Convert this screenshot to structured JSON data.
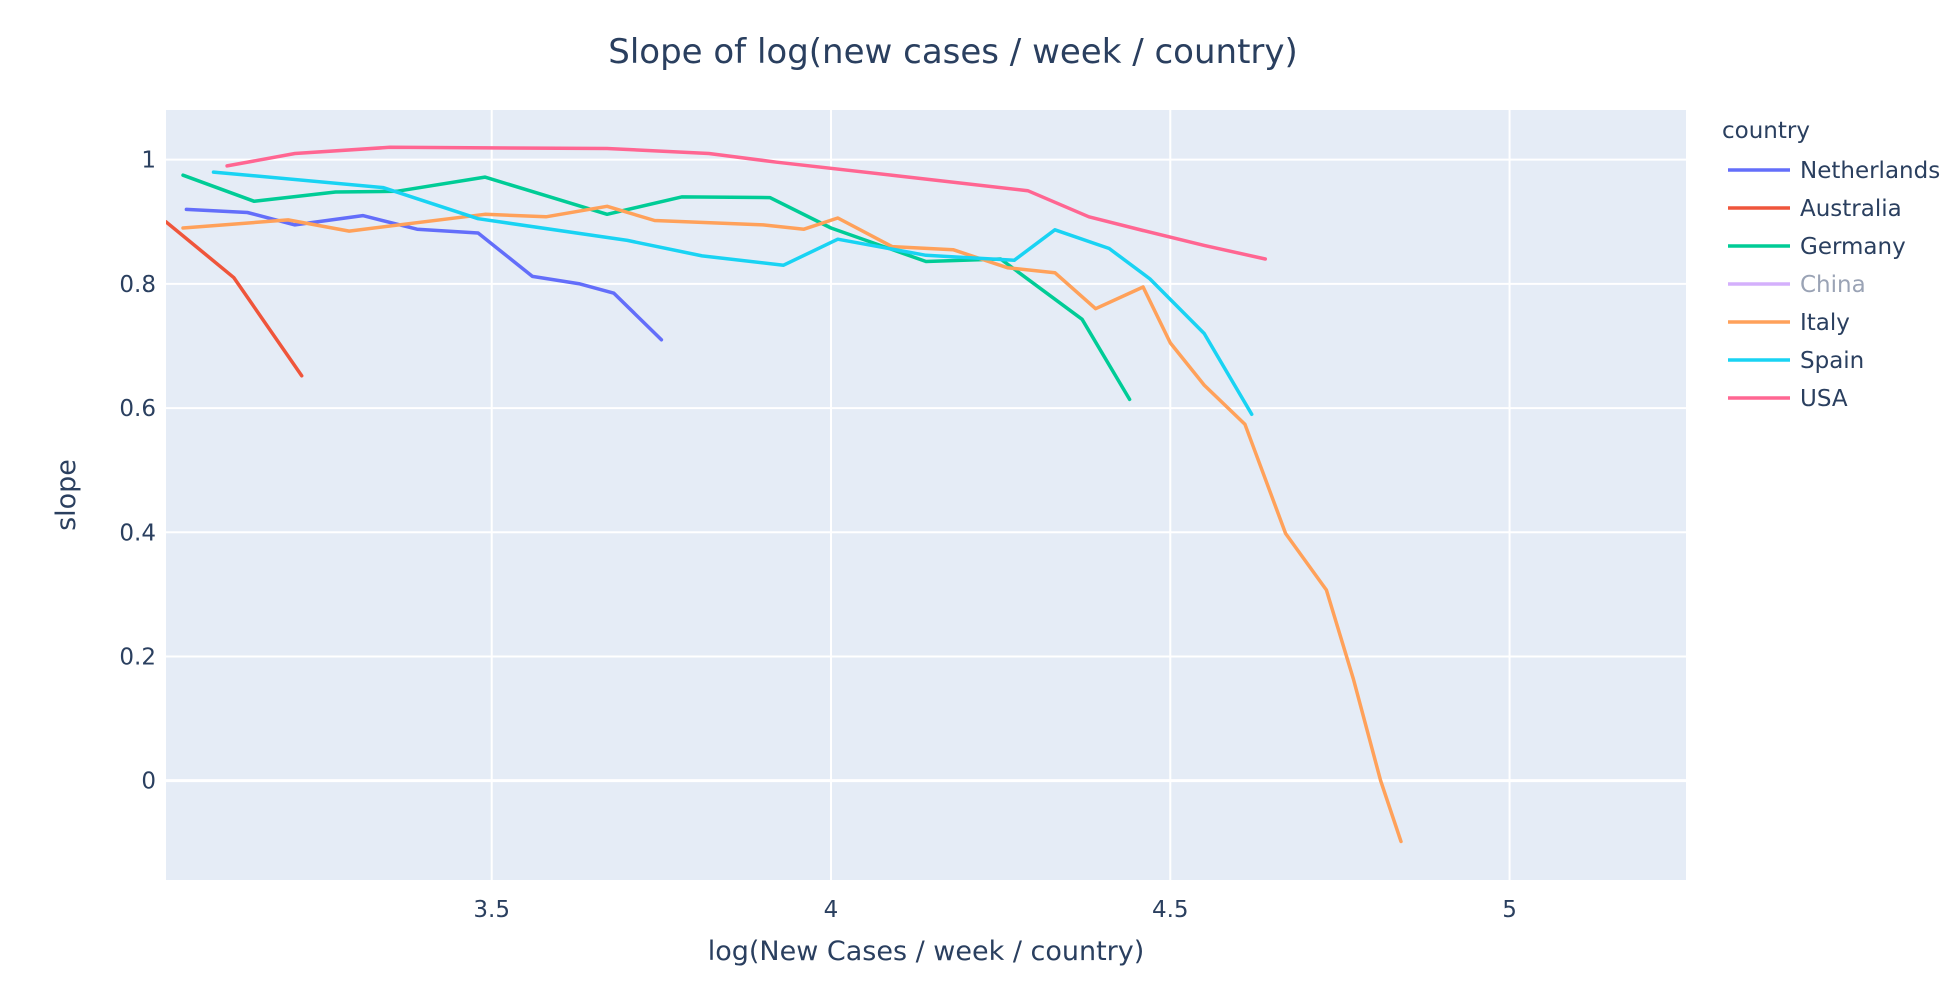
{
  "chart_data": {
    "type": "line",
    "title": "Slope of log(new cases / week / country)",
    "xlabel": "log(New Cases / week / country)",
    "ylabel": "slope",
    "xlim": [
      3.02,
      5.26
    ],
    "ylim": [
      -0.16,
      1.08
    ],
    "x_ticks": [
      3.5,
      4,
      4.5,
      5
    ],
    "x_tick_labels": [
      "3.5",
      "4",
      "4.5",
      "5"
    ],
    "y_ticks": [
      0,
      0.2,
      0.4,
      0.6,
      0.8,
      1
    ],
    "y_tick_labels": [
      "0",
      "0.2",
      "0.4",
      "0.6",
      "0.8",
      "1"
    ],
    "grid": true,
    "legend": {
      "title": "country",
      "placement": "right"
    },
    "series": [
      {
        "name": "Netherlands",
        "color": "#636efa",
        "visible": true,
        "x": [
          3.05,
          3.14,
          3.21,
          3.31,
          3.39,
          3.48,
          3.56,
          3.63,
          3.68,
          3.75
        ],
        "y": [
          0.92,
          0.915,
          0.895,
          0.91,
          0.888,
          0.882,
          0.812,
          0.8,
          0.785,
          0.71
        ]
      },
      {
        "name": "Australia",
        "color": "#ef553b",
        "visible": true,
        "x": [
          3.02,
          3.12,
          3.22
        ],
        "y": [
          0.9,
          0.81,
          0.652
        ]
      },
      {
        "name": "Germany",
        "color": "#00cc96",
        "visible": true,
        "x": [
          3.045,
          3.15,
          3.27,
          3.36,
          3.49,
          3.58,
          3.67,
          3.78,
          3.91,
          4.0,
          4.14,
          4.25,
          4.37,
          4.44
        ],
        "y": [
          0.975,
          0.933,
          0.948,
          0.949,
          0.972,
          0.942,
          0.912,
          0.94,
          0.939,
          0.89,
          0.836,
          0.84,
          0.743,
          0.614
        ]
      },
      {
        "name": "China",
        "color": "#ab63fa",
        "visible": false,
        "x": [],
        "y": []
      },
      {
        "name": "Italy",
        "color": "#ffa15a",
        "visible": true,
        "x": [
          3.045,
          3.2,
          3.29,
          3.49,
          3.58,
          3.67,
          3.74,
          3.9,
          3.96,
          4.01,
          4.09,
          4.18,
          4.26,
          4.33,
          4.39,
          4.46,
          4.5,
          4.55,
          4.61,
          4.67,
          4.73,
          4.77,
          4.81,
          4.84
        ],
        "y": [
          0.89,
          0.903,
          0.885,
          0.912,
          0.908,
          0.925,
          0.902,
          0.895,
          0.888,
          0.906,
          0.86,
          0.855,
          0.826,
          0.818,
          0.76,
          0.795,
          0.705,
          0.637,
          0.574,
          0.398,
          0.307,
          0.163,
          0.0,
          -0.098
        ]
      },
      {
        "name": "Spain",
        "color": "#19d3f3",
        "visible": true,
        "x": [
          3.09,
          3.34,
          3.48,
          3.7,
          3.81,
          3.93,
          4.01,
          4.14,
          4.27,
          4.33,
          4.41,
          4.47,
          4.55,
          4.62
        ],
        "y": [
          0.98,
          0.955,
          0.905,
          0.87,
          0.845,
          0.83,
          0.872,
          0.846,
          0.838,
          0.887,
          0.857,
          0.808,
          0.72,
          0.59
        ]
      },
      {
        "name": "USA",
        "color": "#ff6692",
        "visible": true,
        "x": [
          3.11,
          3.21,
          3.35,
          3.67,
          3.82,
          3.92,
          4.09,
          4.29,
          4.38,
          4.46,
          4.55,
          4.64
        ],
        "y": [
          0.99,
          1.01,
          1.02,
          1.018,
          1.01,
          0.996,
          0.975,
          0.95,
          0.908,
          0.886,
          0.862,
          0.84
        ]
      }
    ]
  }
}
